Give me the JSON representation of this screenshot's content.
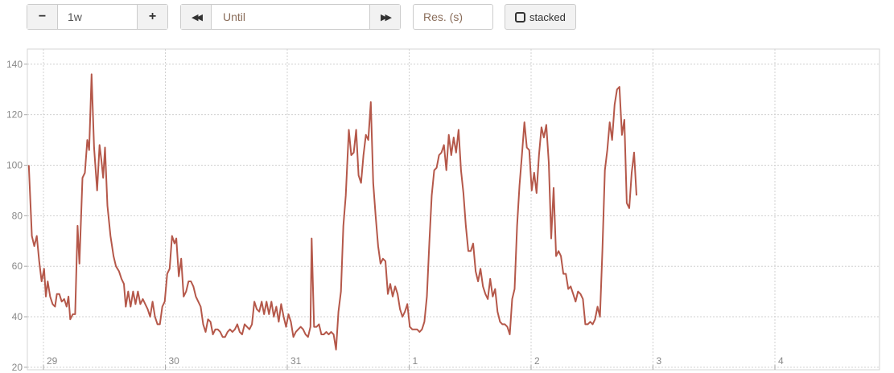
{
  "controls": {
    "range_decrease_label": "−",
    "range_value": "1w",
    "range_increase_label": "+",
    "time_back_label": "◀◀",
    "until_placeholder": "Until",
    "time_forward_label": "▶▶",
    "resolution_placeholder": "Res. (s)",
    "stacked_label": "stacked",
    "stacked_checked": false
  },
  "chart_data": {
    "type": "line",
    "title": "",
    "xlabel": "",
    "ylabel": "",
    "ylim": [
      19,
      146
    ],
    "yticks": [
      20,
      40,
      60,
      80,
      100,
      120,
      140
    ],
    "xlim": [
      0,
      7.0
    ],
    "xticks": [
      {
        "x": 0.0,
        "label": "29"
      },
      {
        "x": 1.0,
        "label": "30"
      },
      {
        "x": 2.0,
        "label": "31"
      },
      {
        "x": 3.0,
        "label": "1"
      },
      {
        "x": 4.0,
        "label": "2"
      },
      {
        "x": 5.0,
        "label": "3"
      },
      {
        "x": 6.0,
        "label": "4"
      }
    ],
    "grid": true,
    "series": [
      {
        "color": "#b5584a",
        "points": [
          [
            -0.12,
            100
          ],
          [
            -0.095,
            72
          ],
          [
            -0.075,
            68
          ],
          [
            -0.055,
            72
          ],
          [
            -0.035,
            62
          ],
          [
            -0.015,
            54
          ],
          [
            0.005,
            59
          ],
          [
            0.02,
            48
          ],
          [
            0.035,
            54
          ],
          [
            0.055,
            48
          ],
          [
            0.075,
            45
          ],
          [
            0.095,
            44
          ],
          [
            0.11,
            49
          ],
          [
            0.13,
            49
          ],
          [
            0.15,
            46
          ],
          [
            0.17,
            47
          ],
          [
            0.19,
            44
          ],
          [
            0.205,
            48
          ],
          [
            0.22,
            39
          ],
          [
            0.24,
            41
          ],
          [
            0.26,
            41
          ],
          [
            0.28,
            76
          ],
          [
            0.295,
            61
          ],
          [
            0.32,
            95
          ],
          [
            0.34,
            97
          ],
          [
            0.36,
            110
          ],
          [
            0.375,
            106
          ],
          [
            0.395,
            136
          ],
          [
            0.415,
            107
          ],
          [
            0.44,
            90
          ],
          [
            0.46,
            108
          ],
          [
            0.475,
            102
          ],
          [
            0.49,
            95
          ],
          [
            0.505,
            107
          ],
          [
            0.525,
            84
          ],
          [
            0.55,
            72
          ],
          [
            0.575,
            64
          ],
          [
            0.595,
            60
          ],
          [
            0.62,
            58
          ],
          [
            0.64,
            55
          ],
          [
            0.66,
            53
          ],
          [
            0.675,
            44
          ],
          [
            0.695,
            50
          ],
          [
            0.715,
            44
          ],
          [
            0.735,
            50
          ],
          [
            0.755,
            45
          ],
          [
            0.775,
            50
          ],
          [
            0.795,
            45
          ],
          [
            0.815,
            47
          ],
          [
            0.835,
            45
          ],
          [
            0.855,
            43
          ],
          [
            0.875,
            40
          ],
          [
            0.895,
            46
          ],
          [
            0.915,
            40
          ],
          [
            0.935,
            37
          ],
          [
            0.955,
            37
          ],
          [
            0.975,
            44
          ],
          [
            0.995,
            46
          ],
          [
            1.015,
            57
          ],
          [
            1.035,
            59
          ],
          [
            1.055,
            72
          ],
          [
            1.075,
            69
          ],
          [
            1.09,
            71
          ],
          [
            1.11,
            56
          ],
          [
            1.13,
            63
          ],
          [
            1.15,
            48
          ],
          [
            1.17,
            50
          ],
          [
            1.19,
            54
          ],
          [
            1.21,
            54
          ],
          [
            1.23,
            52
          ],
          [
            1.25,
            48
          ],
          [
            1.27,
            46
          ],
          [
            1.29,
            44
          ],
          [
            1.31,
            37
          ],
          [
            1.33,
            34
          ],
          [
            1.35,
            39
          ],
          [
            1.37,
            38
          ],
          [
            1.39,
            33
          ],
          [
            1.41,
            35
          ],
          [
            1.43,
            35
          ],
          [
            1.45,
            34
          ],
          [
            1.47,
            32
          ],
          [
            1.49,
            32
          ],
          [
            1.51,
            34
          ],
          [
            1.53,
            35
          ],
          [
            1.55,
            34
          ],
          [
            1.57,
            35
          ],
          [
            1.59,
            37
          ],
          [
            1.61,
            34
          ],
          [
            1.63,
            33
          ],
          [
            1.65,
            37
          ],
          [
            1.67,
            36
          ],
          [
            1.69,
            35
          ],
          [
            1.71,
            37
          ],
          [
            1.73,
            46
          ],
          [
            1.75,
            43
          ],
          [
            1.77,
            42
          ],
          [
            1.79,
            46
          ],
          [
            1.81,
            41
          ],
          [
            1.83,
            46
          ],
          [
            1.85,
            41
          ],
          [
            1.87,
            46
          ],
          [
            1.89,
            40
          ],
          [
            1.91,
            44
          ],
          [
            1.93,
            38
          ],
          [
            1.95,
            45
          ],
          [
            1.97,
            40
          ],
          [
            1.99,
            36
          ],
          [
            2.01,
            41
          ],
          [
            2.03,
            38
          ],
          [
            2.05,
            32
          ],
          [
            2.07,
            34
          ],
          [
            2.09,
            35
          ],
          [
            2.11,
            36
          ],
          [
            2.13,
            35
          ],
          [
            2.15,
            33
          ],
          [
            2.17,
            32
          ],
          [
            2.19,
            36
          ],
          [
            2.2,
            71
          ],
          [
            2.22,
            36
          ],
          [
            2.24,
            36
          ],
          [
            2.26,
            37
          ],
          [
            2.28,
            33
          ],
          [
            2.3,
            33
          ],
          [
            2.32,
            34
          ],
          [
            2.34,
            33
          ],
          [
            2.36,
            34
          ],
          [
            2.38,
            33
          ],
          [
            2.4,
            27
          ],
          [
            2.42,
            42
          ],
          [
            2.44,
            50
          ],
          [
            2.46,
            76
          ],
          [
            2.48,
            88
          ],
          [
            2.505,
            114
          ],
          [
            2.525,
            104
          ],
          [
            2.545,
            105
          ],
          [
            2.565,
            114
          ],
          [
            2.585,
            96
          ],
          [
            2.605,
            93
          ],
          [
            2.625,
            104
          ],
          [
            2.645,
            112
          ],
          [
            2.665,
            110
          ],
          [
            2.685,
            125
          ],
          [
            2.705,
            93
          ],
          [
            2.725,
            80
          ],
          [
            2.745,
            68
          ],
          [
            2.765,
            61
          ],
          [
            2.785,
            63
          ],
          [
            2.805,
            62
          ],
          [
            2.825,
            49
          ],
          [
            2.845,
            53
          ],
          [
            2.865,
            48
          ],
          [
            2.885,
            52
          ],
          [
            2.905,
            49
          ],
          [
            2.925,
            43
          ],
          [
            2.945,
            40
          ],
          [
            2.965,
            42
          ],
          [
            2.985,
            45
          ],
          [
            3.005,
            36
          ],
          [
            3.025,
            35
          ],
          [
            3.045,
            35
          ],
          [
            3.065,
            35
          ],
          [
            3.085,
            34
          ],
          [
            3.105,
            35
          ],
          [
            3.125,
            38
          ],
          [
            3.145,
            48
          ],
          [
            3.165,
            69
          ],
          [
            3.185,
            88
          ],
          [
            3.205,
            98
          ],
          [
            3.225,
            99
          ],
          [
            3.245,
            104
          ],
          [
            3.265,
            105
          ],
          [
            3.285,
            108
          ],
          [
            3.305,
            98
          ],
          [
            3.325,
            112
          ],
          [
            3.345,
            104
          ],
          [
            3.365,
            111
          ],
          [
            3.385,
            105
          ],
          [
            3.405,
            114
          ],
          [
            3.425,
            98
          ],
          [
            3.445,
            89
          ],
          [
            3.465,
            76
          ],
          [
            3.485,
            66
          ],
          [
            3.505,
            66
          ],
          [
            3.525,
            69
          ],
          [
            3.545,
            58
          ],
          [
            3.565,
            54
          ],
          [
            3.585,
            59
          ],
          [
            3.605,
            52
          ],
          [
            3.625,
            49
          ],
          [
            3.645,
            47
          ],
          [
            3.665,
            55
          ],
          [
            3.685,
            48
          ],
          [
            3.705,
            51
          ],
          [
            3.725,
            42
          ],
          [
            3.745,
            38
          ],
          [
            3.765,
            37
          ],
          [
            3.785,
            37
          ],
          [
            3.805,
            36
          ],
          [
            3.825,
            33
          ],
          [
            3.845,
            47
          ],
          [
            3.865,
            51
          ],
          [
            3.885,
            76
          ],
          [
            3.905,
            92
          ],
          [
            3.925,
            104
          ],
          [
            3.945,
            117
          ],
          [
            3.965,
            107
          ],
          [
            3.985,
            106
          ],
          [
            4.005,
            90
          ],
          [
            4.025,
            97
          ],
          [
            4.045,
            89
          ],
          [
            4.065,
            104
          ],
          [
            4.085,
            115
          ],
          [
            4.105,
            111
          ],
          [
            4.125,
            116
          ],
          [
            4.145,
            101
          ],
          [
            4.165,
            71
          ],
          [
            4.185,
            91
          ],
          [
            4.205,
            64
          ],
          [
            4.225,
            66
          ],
          [
            4.245,
            64
          ],
          [
            4.265,
            57
          ],
          [
            4.285,
            57
          ],
          [
            4.305,
            51
          ],
          [
            4.325,
            52
          ],
          [
            4.345,
            49
          ],
          [
            4.365,
            46
          ],
          [
            4.385,
            50
          ],
          [
            4.405,
            49
          ],
          [
            4.425,
            47
          ],
          [
            4.445,
            37
          ],
          [
            4.465,
            37
          ],
          [
            4.485,
            38
          ],
          [
            4.505,
            37
          ],
          [
            4.525,
            39
          ],
          [
            4.545,
            44
          ],
          [
            4.565,
            40
          ],
          [
            4.585,
            66
          ],
          [
            4.605,
            98
          ],
          [
            4.625,
            106
          ],
          [
            4.645,
            117
          ],
          [
            4.665,
            110
          ],
          [
            4.685,
            124
          ],
          [
            4.705,
            130
          ],
          [
            4.725,
            131
          ],
          [
            4.745,
            112
          ],
          [
            4.765,
            118
          ],
          [
            4.785,
            85
          ],
          [
            4.805,
            83
          ],
          [
            4.825,
            97
          ],
          [
            4.845,
            105
          ],
          [
            4.865,
            88
          ]
        ]
      }
    ]
  }
}
